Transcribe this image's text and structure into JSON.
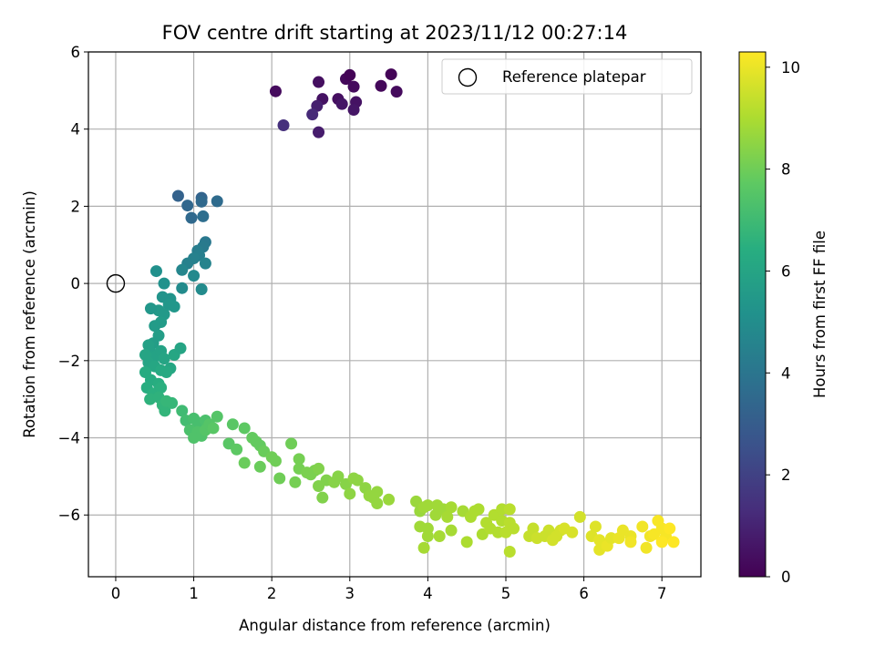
{
  "chart_data": {
    "type": "scatter",
    "title": "FOV centre drift starting at 2023/11/12 00:27:14",
    "xlabel": "Angular distance from reference (arcmin)",
    "ylabel": "Rotation from reference (arcmin)",
    "colorbar_label": "Hours from first FF file",
    "xlim": [
      -0.35,
      7.5
    ],
    "ylim": [
      -7.6,
      6.0
    ],
    "clim": [
      0,
      10.3
    ],
    "colormap": "viridis",
    "xticks": [
      "0",
      "1",
      "2",
      "3",
      "4",
      "5",
      "6",
      "7"
    ],
    "yticks": [
      "6",
      "4",
      "2",
      "0",
      "−2",
      "−4",
      "−6"
    ],
    "cticks": [
      "10",
      "8",
      "6",
      "4",
      "2",
      "0"
    ],
    "grid": true,
    "legend_position": "top-right",
    "legend": {
      "entries": [
        "Reference platepar"
      ]
    },
    "reference_point": {
      "x": 0,
      "y": 0
    },
    "series": [
      {
        "points": [
          [
            2.05,
            4.98,
            0.3
          ],
          [
            2.15,
            4.1,
            1.4
          ],
          [
            2.6,
            5.22,
            0.4
          ],
          [
            2.65,
            4.78,
            0.5
          ],
          [
            2.58,
            4.6,
            0.9
          ],
          [
            2.52,
            4.38,
            1.2
          ],
          [
            2.6,
            3.92,
            0.8
          ],
          [
            2.85,
            4.78,
            0.4
          ],
          [
            2.9,
            4.65,
            0.6
          ],
          [
            2.95,
            5.3,
            0.2
          ],
          [
            3.0,
            5.4,
            0.1
          ],
          [
            3.05,
            5.1,
            0.3
          ],
          [
            3.08,
            4.7,
            0.5
          ],
          [
            3.05,
            4.5,
            0.6
          ],
          [
            3.4,
            5.12,
            0.2
          ],
          [
            3.53,
            5.42,
            0.1
          ],
          [
            3.6,
            4.97,
            0.3
          ],
          [
            0.8,
            2.27,
            3.2
          ],
          [
            0.92,
            2.02,
            3.4
          ],
          [
            0.97,
            1.7,
            3.5
          ],
          [
            1.1,
            2.22,
            3.3
          ],
          [
            1.1,
            2.12,
            3.5
          ],
          [
            1.12,
            1.74,
            3.7
          ],
          [
            1.3,
            2.13,
            3.6
          ],
          [
            1.15,
            1.07,
            4.1
          ],
          [
            1.12,
            0.95,
            4.2
          ],
          [
            1.05,
            0.85,
            4.3
          ],
          [
            1.07,
            0.73,
            4.4
          ],
          [
            1.0,
            0.65,
            4.5
          ],
          [
            1.15,
            0.52,
            4.6
          ],
          [
            0.92,
            0.52,
            4.5
          ],
          [
            0.85,
            0.35,
            4.7
          ],
          [
            1.0,
            0.2,
            4.8
          ],
          [
            0.85,
            -0.12,
            4.9
          ],
          [
            1.1,
            -0.15,
            4.9
          ],
          [
            0.52,
            0.32,
            5.1
          ],
          [
            0.62,
            0.0,
            5.2
          ],
          [
            0.6,
            -0.35,
            5.3
          ],
          [
            0.7,
            -0.4,
            5.3
          ],
          [
            0.75,
            -0.6,
            5.4
          ],
          [
            0.68,
            -0.55,
            5.4
          ],
          [
            0.55,
            -0.7,
            5.5
          ],
          [
            0.62,
            -0.8,
            5.5
          ],
          [
            0.45,
            -0.65,
            5.4
          ],
          [
            0.58,
            -1.0,
            5.6
          ],
          [
            0.5,
            -1.1,
            5.6
          ],
          [
            0.55,
            -1.35,
            5.7
          ],
          [
            0.48,
            -1.55,
            5.7
          ],
          [
            0.42,
            -1.6,
            5.8
          ],
          [
            0.45,
            -1.8,
            5.8
          ],
          [
            0.5,
            -1.9,
            5.9
          ],
          [
            0.58,
            -1.75,
            5.9
          ],
          [
            0.62,
            -1.95,
            6.0
          ],
          [
            0.38,
            -1.85,
            6.0
          ],
          [
            0.42,
            -2.05,
            6.0
          ],
          [
            0.5,
            -2.15,
            6.1
          ],
          [
            0.7,
            -2.2,
            6.1
          ],
          [
            0.58,
            -2.25,
            6.2
          ],
          [
            0.65,
            -2.3,
            6.2
          ],
          [
            0.75,
            -1.85,
            6.1
          ],
          [
            0.83,
            -1.68,
            6.0
          ],
          [
            0.38,
            -2.3,
            6.3
          ],
          [
            0.45,
            -2.5,
            6.3
          ],
          [
            0.55,
            -2.6,
            6.4
          ],
          [
            0.4,
            -2.7,
            6.4
          ],
          [
            0.48,
            -2.85,
            6.5
          ],
          [
            0.58,
            -2.7,
            6.5
          ],
          [
            0.44,
            -3.0,
            6.6
          ],
          [
            0.55,
            -2.95,
            6.6
          ],
          [
            0.6,
            -3.15,
            6.7
          ],
          [
            0.63,
            -3.3,
            6.7
          ],
          [
            0.72,
            -3.1,
            6.8
          ],
          [
            0.65,
            -3.05,
            6.8
          ],
          [
            0.85,
            -3.3,
            7.0
          ],
          [
            0.9,
            -3.55,
            7.1
          ],
          [
            1.0,
            -3.5,
            7.2
          ],
          [
            1.05,
            -3.6,
            7.2
          ],
          [
            1.15,
            -3.55,
            7.3
          ],
          [
            0.95,
            -3.8,
            7.3
          ],
          [
            1.05,
            -3.85,
            7.4
          ],
          [
            1.0,
            -4.0,
            7.4
          ],
          [
            1.1,
            -3.95,
            7.4
          ],
          [
            1.15,
            -3.8,
            7.5
          ],
          [
            1.2,
            -3.65,
            7.5
          ],
          [
            1.3,
            -3.45,
            7.5
          ],
          [
            1.25,
            -3.75,
            7.6
          ],
          [
            1.45,
            -4.15,
            7.6
          ],
          [
            1.5,
            -3.65,
            7.6
          ],
          [
            1.55,
            -4.3,
            7.7
          ],
          [
            1.65,
            -3.75,
            7.7
          ],
          [
            1.75,
            -4.0,
            7.8
          ],
          [
            1.8,
            -4.1,
            7.8
          ],
          [
            1.85,
            -4.2,
            7.8
          ],
          [
            1.65,
            -4.65,
            7.9
          ],
          [
            1.85,
            -4.75,
            7.9
          ],
          [
            1.9,
            -4.35,
            7.9
          ],
          [
            2.0,
            -4.5,
            8.0
          ],
          [
            2.05,
            -4.6,
            8.0
          ],
          [
            2.1,
            -5.05,
            8.0
          ],
          [
            2.25,
            -4.15,
            8.0
          ],
          [
            2.3,
            -5.15,
            8.1
          ],
          [
            2.35,
            -4.55,
            8.1
          ],
          [
            2.35,
            -4.8,
            8.1
          ],
          [
            2.45,
            -4.9,
            8.2
          ],
          [
            2.5,
            -4.95,
            8.2
          ],
          [
            2.55,
            -4.85,
            8.2
          ],
          [
            2.6,
            -4.8,
            8.3
          ],
          [
            2.6,
            -5.25,
            8.3
          ],
          [
            2.7,
            -5.1,
            8.3
          ],
          [
            2.65,
            -5.55,
            8.3
          ],
          [
            2.8,
            -5.15,
            8.4
          ],
          [
            2.85,
            -5.0,
            8.4
          ],
          [
            2.95,
            -5.2,
            8.4
          ],
          [
            3.0,
            -5.45,
            8.5
          ],
          [
            3.05,
            -5.05,
            8.5
          ],
          [
            3.1,
            -5.1,
            8.5
          ],
          [
            3.2,
            -5.3,
            8.5
          ],
          [
            3.25,
            -5.5,
            8.6
          ],
          [
            3.3,
            -5.55,
            8.6
          ],
          [
            3.35,
            -5.7,
            8.6
          ],
          [
            3.35,
            -5.4,
            8.6
          ],
          [
            3.5,
            -5.6,
            8.7
          ],
          [
            3.85,
            -5.65,
            8.7
          ],
          [
            3.9,
            -5.9,
            8.7
          ],
          [
            3.95,
            -5.8,
            8.8
          ],
          [
            4.0,
            -5.75,
            8.8
          ],
          [
            3.9,
            -6.3,
            8.8
          ],
          [
            4.0,
            -6.35,
            8.8
          ],
          [
            4.0,
            -6.55,
            8.8
          ],
          [
            3.95,
            -6.85,
            8.9
          ],
          [
            4.1,
            -6.0,
            8.8
          ],
          [
            4.12,
            -5.75,
            8.8
          ],
          [
            4.2,
            -5.85,
            8.8
          ],
          [
            4.25,
            -6.05,
            8.9
          ],
          [
            4.15,
            -6.55,
            8.9
          ],
          [
            4.3,
            -6.4,
            8.9
          ],
          [
            4.3,
            -5.8,
            8.9
          ],
          [
            4.45,
            -5.9,
            8.9
          ],
          [
            4.55,
            -6.05,
            9.0
          ],
          [
            4.6,
            -5.9,
            9.0
          ],
          [
            4.65,
            -5.85,
            9.0
          ],
          [
            4.5,
            -6.7,
            9.0
          ],
          [
            4.7,
            -6.5,
            9.0
          ],
          [
            4.75,
            -6.2,
            9.1
          ],
          [
            4.85,
            -6.0,
            9.1
          ],
          [
            4.8,
            -6.35,
            9.1
          ],
          [
            4.9,
            -6.45,
            9.1
          ],
          [
            4.95,
            -6.15,
            9.1
          ],
          [
            4.95,
            -5.85,
            9.1
          ],
          [
            5.05,
            -5.85,
            9.2
          ],
          [
            5.05,
            -6.2,
            9.2
          ],
          [
            5.1,
            -6.35,
            9.2
          ],
          [
            5.0,
            -6.45,
            9.2
          ],
          [
            5.05,
            -6.95,
            9.2
          ],
          [
            5.3,
            -6.55,
            9.4
          ],
          [
            5.35,
            -6.35,
            9.4
          ],
          [
            5.4,
            -6.6,
            9.5
          ],
          [
            5.5,
            -6.55,
            9.5
          ],
          [
            5.55,
            -6.4,
            9.5
          ],
          [
            5.6,
            -6.65,
            9.6
          ],
          [
            5.65,
            -6.55,
            9.6
          ],
          [
            5.7,
            -6.4,
            9.6
          ],
          [
            5.75,
            -6.35,
            9.7
          ],
          [
            5.85,
            -6.45,
            9.7
          ],
          [
            5.95,
            -6.05,
            9.6
          ],
          [
            6.1,
            -6.55,
            9.8
          ],
          [
            6.15,
            -6.3,
            9.8
          ],
          [
            6.2,
            -6.65,
            9.9
          ],
          [
            6.25,
            -6.75,
            9.9
          ],
          [
            6.2,
            -6.9,
            9.9
          ],
          [
            6.3,
            -6.8,
            10.0
          ],
          [
            6.35,
            -6.6,
            9.9
          ],
          [
            6.45,
            -6.6,
            10.0
          ],
          [
            6.5,
            -6.4,
            10.0
          ],
          [
            6.6,
            -6.55,
            10.0
          ],
          [
            6.6,
            -6.7,
            10.1
          ],
          [
            6.75,
            -6.3,
            10.1
          ],
          [
            6.8,
            -6.85,
            10.1
          ],
          [
            6.85,
            -6.55,
            10.1
          ],
          [
            6.9,
            -6.5,
            10.2
          ],
          [
            6.95,
            -6.15,
            10.2
          ],
          [
            7.0,
            -6.35,
            10.2
          ],
          [
            7.05,
            -6.55,
            10.2
          ],
          [
            7.0,
            -6.7,
            10.3
          ],
          [
            7.1,
            -6.35,
            10.3
          ],
          [
            7.15,
            -6.7,
            10.3
          ]
        ]
      }
    ]
  }
}
